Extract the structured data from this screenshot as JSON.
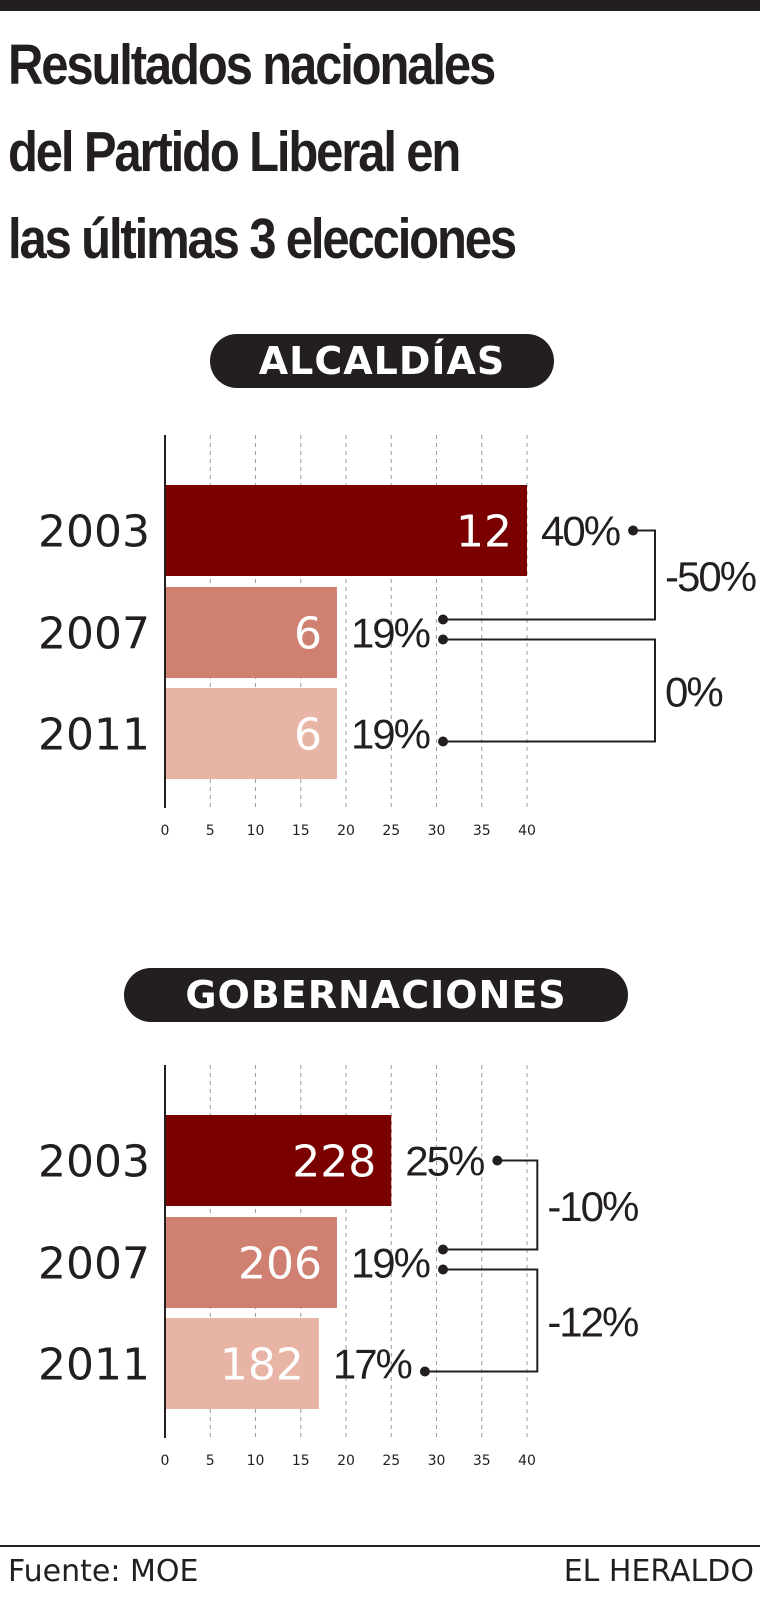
{
  "title_lines": [
    "Resultados nacionales",
    "del Partido Liberal en",
    "las últimas 3 elecciones"
  ],
  "colors": {
    "y2003": "#7a0000",
    "y2007": "#cf8070",
    "y2011": "#e7b4a5",
    "ink": "#231f20"
  },
  "chart_data": [
    {
      "type": "bar",
      "section_label": "ALCALDÍAS",
      "categories": [
        "2003",
        "2007",
        "2011"
      ],
      "values": [
        12,
        6,
        6
      ],
      "percent": [
        40,
        19,
        19
      ],
      "percent_labels": [
        "40%",
        "19%",
        "19%"
      ],
      "changes": [
        {
          "from": 0,
          "to": 1,
          "label": "-50%"
        },
        {
          "from": 1,
          "to": 2,
          "label": "0%"
        }
      ],
      "xlim": [
        0,
        40
      ],
      "xticks": [
        0,
        5,
        10,
        15,
        20,
        25,
        30,
        35,
        40
      ],
      "grid": true
    },
    {
      "type": "bar",
      "section_label": "GOBERNACIONES",
      "categories": [
        "2003",
        "2007",
        "2011"
      ],
      "values": [
        228,
        206,
        182
      ],
      "percent": [
        25,
        19,
        17
      ],
      "percent_labels": [
        "25%",
        "19%",
        "17%"
      ],
      "changes": [
        {
          "from": 0,
          "to": 1,
          "label": "-10%"
        },
        {
          "from": 1,
          "to": 2,
          "label": "-12%"
        }
      ],
      "xlim": [
        0,
        40
      ],
      "xticks": [
        0,
        5,
        10,
        15,
        20,
        25,
        30,
        35,
        40
      ],
      "grid": true
    }
  ],
  "footer": {
    "source": "Fuente: MOE",
    "brand": "EL HERALDO"
  }
}
